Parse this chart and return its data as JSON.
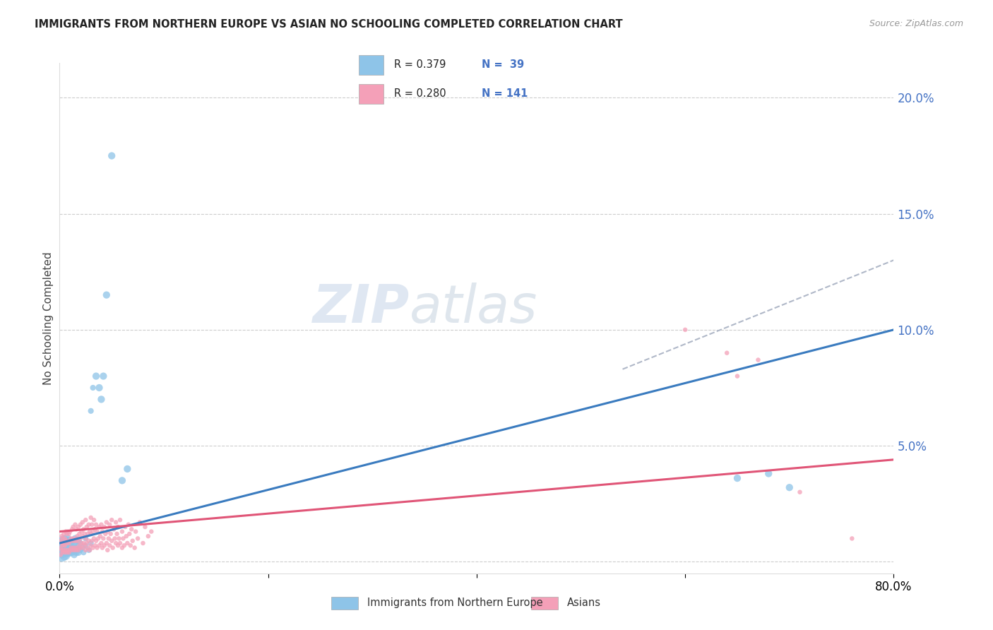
{
  "title": "IMMIGRANTS FROM NORTHERN EUROPE VS ASIAN NO SCHOOLING COMPLETED CORRELATION CHART",
  "source": "Source: ZipAtlas.com",
  "ylabel": "No Schooling Completed",
  "xlim": [
    0.0,
    0.8
  ],
  "ylim": [
    -0.005,
    0.215
  ],
  "color_blue": "#8ec4e8",
  "color_pink": "#f4a0b8",
  "color_line_blue": "#3a7bbf",
  "color_line_pink": "#e05577",
  "color_line_dashed": "#b0b8c8",
  "watermark_zip": "ZIP",
  "watermark_atlas": "atlas",
  "background_color": "#ffffff",
  "blue_line_x": [
    0.0,
    0.8
  ],
  "blue_line_y": [
    0.008,
    0.1
  ],
  "pink_line_x": [
    0.0,
    0.8
  ],
  "pink_line_y": [
    0.013,
    0.044
  ],
  "dashed_line_x": [
    0.54,
    0.8
  ],
  "dashed_line_y": [
    0.083,
    0.13
  ],
  "blue_points": [
    [
      0.002,
      0.003
    ],
    [
      0.002,
      0.006
    ],
    [
      0.003,
      0.004
    ],
    [
      0.003,
      0.008
    ],
    [
      0.004,
      0.005
    ],
    [
      0.004,
      0.009
    ],
    [
      0.005,
      0.003
    ],
    [
      0.005,
      0.007
    ],
    [
      0.006,
      0.005
    ],
    [
      0.006,
      0.008
    ],
    [
      0.007,
      0.004
    ],
    [
      0.007,
      0.01
    ],
    [
      0.008,
      0.006
    ],
    [
      0.008,
      0.009
    ],
    [
      0.009,
      0.004
    ],
    [
      0.009,
      0.007
    ],
    [
      0.01,
      0.005
    ],
    [
      0.01,
      0.008
    ],
    [
      0.011,
      0.006
    ],
    [
      0.012,
      0.004
    ],
    [
      0.012,
      0.009
    ],
    [
      0.013,
      0.006
    ],
    [
      0.014,
      0.003
    ],
    [
      0.014,
      0.008
    ],
    [
      0.015,
      0.005
    ],
    [
      0.015,
      0.01
    ],
    [
      0.016,
      0.004
    ],
    [
      0.016,
      0.007
    ],
    [
      0.017,
      0.006
    ],
    [
      0.018,
      0.004
    ],
    [
      0.018,
      0.009
    ],
    [
      0.02,
      0.005
    ],
    [
      0.02,
      0.008
    ],
    [
      0.022,
      0.006
    ],
    [
      0.023,
      0.004
    ],
    [
      0.025,
      0.007
    ],
    [
      0.025,
      0.01
    ],
    [
      0.028,
      0.005
    ],
    [
      0.03,
      0.008
    ],
    [
      0.03,
      0.065
    ],
    [
      0.032,
      0.075
    ],
    [
      0.035,
      0.08
    ],
    [
      0.038,
      0.075
    ],
    [
      0.04,
      0.07
    ],
    [
      0.042,
      0.08
    ],
    [
      0.045,
      0.115
    ],
    [
      0.05,
      0.175
    ],
    [
      0.06,
      0.035
    ],
    [
      0.065,
      0.04
    ],
    [
      0.65,
      0.036
    ],
    [
      0.68,
      0.038
    ],
    [
      0.7,
      0.032
    ]
  ],
  "pink_points": [
    [
      0.001,
      0.003
    ],
    [
      0.001,
      0.006
    ],
    [
      0.001,
      0.009
    ],
    [
      0.002,
      0.005
    ],
    [
      0.002,
      0.008
    ],
    [
      0.002,
      0.011
    ],
    [
      0.003,
      0.004
    ],
    [
      0.003,
      0.007
    ],
    [
      0.003,
      0.01
    ],
    [
      0.004,
      0.005
    ],
    [
      0.004,
      0.008
    ],
    [
      0.004,
      0.012
    ],
    [
      0.005,
      0.004
    ],
    [
      0.005,
      0.007
    ],
    [
      0.005,
      0.01
    ],
    [
      0.006,
      0.005
    ],
    [
      0.006,
      0.009
    ],
    [
      0.006,
      0.013
    ],
    [
      0.007,
      0.004
    ],
    [
      0.007,
      0.008
    ],
    [
      0.007,
      0.012
    ],
    [
      0.008,
      0.005
    ],
    [
      0.008,
      0.009
    ],
    [
      0.008,
      0.013
    ],
    [
      0.009,
      0.004
    ],
    [
      0.009,
      0.008
    ],
    [
      0.009,
      0.012
    ],
    [
      0.01,
      0.005
    ],
    [
      0.01,
      0.009
    ],
    [
      0.01,
      0.013
    ],
    [
      0.011,
      0.006
    ],
    [
      0.011,
      0.01
    ],
    [
      0.012,
      0.005
    ],
    [
      0.012,
      0.009
    ],
    [
      0.012,
      0.014
    ],
    [
      0.013,
      0.006
    ],
    [
      0.013,
      0.01
    ],
    [
      0.013,
      0.015
    ],
    [
      0.014,
      0.005
    ],
    [
      0.014,
      0.009
    ],
    [
      0.015,
      0.006
    ],
    [
      0.015,
      0.01
    ],
    [
      0.015,
      0.016
    ],
    [
      0.016,
      0.005
    ],
    [
      0.016,
      0.009
    ],
    [
      0.016,
      0.014
    ],
    [
      0.017,
      0.006
    ],
    [
      0.017,
      0.011
    ],
    [
      0.018,
      0.005
    ],
    [
      0.018,
      0.009
    ],
    [
      0.018,
      0.015
    ],
    [
      0.019,
      0.007
    ],
    [
      0.019,
      0.012
    ],
    [
      0.02,
      0.006
    ],
    [
      0.02,
      0.01
    ],
    [
      0.02,
      0.016
    ],
    [
      0.021,
      0.008
    ],
    [
      0.021,
      0.013
    ],
    [
      0.022,
      0.006
    ],
    [
      0.022,
      0.011
    ],
    [
      0.022,
      0.017
    ],
    [
      0.023,
      0.008
    ],
    [
      0.023,
      0.014
    ],
    [
      0.024,
      0.007
    ],
    [
      0.024,
      0.012
    ],
    [
      0.025,
      0.005
    ],
    [
      0.025,
      0.01
    ],
    [
      0.025,
      0.018
    ],
    [
      0.026,
      0.008
    ],
    [
      0.026,
      0.015
    ],
    [
      0.027,
      0.006
    ],
    [
      0.027,
      0.012
    ],
    [
      0.028,
      0.009
    ],
    [
      0.028,
      0.016
    ],
    [
      0.029,
      0.005
    ],
    [
      0.029,
      0.013
    ],
    [
      0.03,
      0.007
    ],
    [
      0.03,
      0.012
    ],
    [
      0.03,
      0.019
    ],
    [
      0.031,
      0.009
    ],
    [
      0.031,
      0.016
    ],
    [
      0.032,
      0.006
    ],
    [
      0.032,
      0.013
    ],
    [
      0.033,
      0.01
    ],
    [
      0.033,
      0.018
    ],
    [
      0.034,
      0.007
    ],
    [
      0.034,
      0.014
    ],
    [
      0.035,
      0.009
    ],
    [
      0.035,
      0.016
    ],
    [
      0.036,
      0.006
    ],
    [
      0.036,
      0.013
    ],
    [
      0.037,
      0.01
    ],
    [
      0.038,
      0.007
    ],
    [
      0.038,
      0.015
    ],
    [
      0.039,
      0.011
    ],
    [
      0.04,
      0.008
    ],
    [
      0.04,
      0.016
    ],
    [
      0.041,
      0.006
    ],
    [
      0.041,
      0.013
    ],
    [
      0.042,
      0.01
    ],
    [
      0.043,
      0.007
    ],
    [
      0.043,
      0.015
    ],
    [
      0.044,
      0.012
    ],
    [
      0.045,
      0.008
    ],
    [
      0.045,
      0.017
    ],
    [
      0.046,
      0.005
    ],
    [
      0.046,
      0.013
    ],
    [
      0.047,
      0.01
    ],
    [
      0.048,
      0.007
    ],
    [
      0.048,
      0.016
    ],
    [
      0.049,
      0.012
    ],
    [
      0.05,
      0.009
    ],
    [
      0.05,
      0.018
    ],
    [
      0.051,
      0.006
    ],
    [
      0.052,
      0.014
    ],
    [
      0.053,
      0.01
    ],
    [
      0.054,
      0.008
    ],
    [
      0.054,
      0.017
    ],
    [
      0.055,
      0.012
    ],
    [
      0.056,
      0.007
    ],
    [
      0.056,
      0.015
    ],
    [
      0.057,
      0.01
    ],
    [
      0.058,
      0.008
    ],
    [
      0.058,
      0.018
    ],
    [
      0.06,
      0.006
    ],
    [
      0.06,
      0.013
    ],
    [
      0.061,
      0.01
    ],
    [
      0.062,
      0.007
    ],
    [
      0.063,
      0.015
    ],
    [
      0.064,
      0.011
    ],
    [
      0.065,
      0.008
    ],
    [
      0.066,
      0.016
    ],
    [
      0.067,
      0.012
    ],
    [
      0.068,
      0.007
    ],
    [
      0.069,
      0.014
    ],
    [
      0.07,
      0.009
    ],
    [
      0.072,
      0.006
    ],
    [
      0.073,
      0.013
    ],
    [
      0.075,
      0.01
    ],
    [
      0.077,
      0.017
    ],
    [
      0.08,
      0.008
    ],
    [
      0.082,
      0.015
    ],
    [
      0.085,
      0.011
    ],
    [
      0.088,
      0.013
    ],
    [
      0.6,
      0.1
    ],
    [
      0.64,
      0.09
    ],
    [
      0.65,
      0.08
    ],
    [
      0.67,
      0.087
    ],
    [
      0.71,
      0.03
    ],
    [
      0.76,
      0.01
    ]
  ],
  "blue_point_sizes": {
    "tiny": 20,
    "small": 40,
    "medium": 70,
    "large": 120,
    "xlarge": 200
  },
  "pink_point_size": 22
}
